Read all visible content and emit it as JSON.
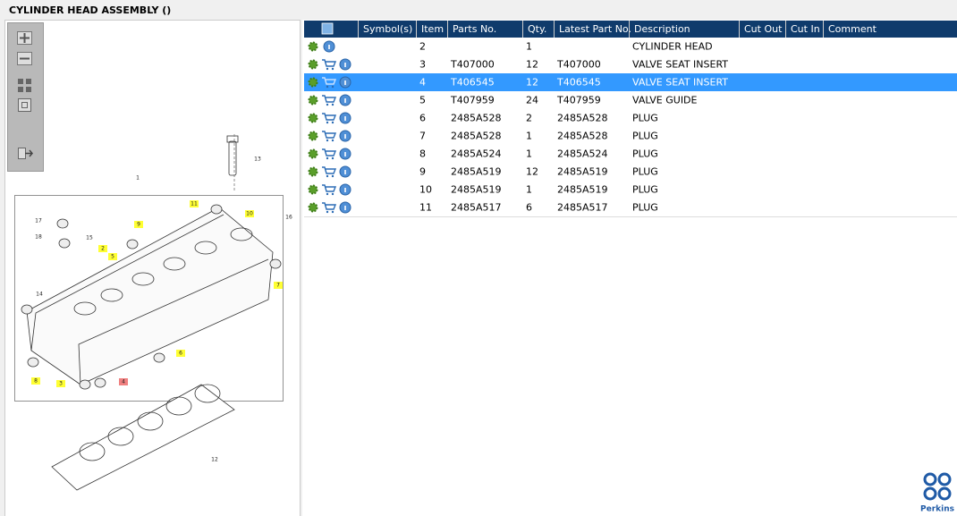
{
  "header": {
    "title": "CYLINDER HEAD ASSEMBLY ()"
  },
  "diagram": {
    "callouts": [
      "13",
      "1",
      "11",
      "10",
      "16",
      "17",
      "18",
      "15",
      "9",
      "2",
      "5",
      "7",
      "14",
      "6",
      "8",
      "3",
      "4",
      "12"
    ]
  },
  "table": {
    "columns": [
      "Symbol(s)",
      "Item",
      "Parts No.",
      "Qty.",
      "Latest Part No.",
      "Description",
      "Cut Out",
      "Cut In",
      "Comment"
    ],
    "rows": [
      {
        "item": "2",
        "qty": "1",
        "description": "CYLINDER HEAD"
      },
      {
        "item": "3",
        "parts_no": "T407000",
        "qty": "12",
        "latest_part_no": "T407000",
        "description": "VALVE SEAT INSERT"
      },
      {
        "item": "4",
        "parts_no": "T406545",
        "qty": "12",
        "latest_part_no": "T406545",
        "description": "VALVE SEAT INSERT",
        "selected": true
      },
      {
        "item": "5",
        "parts_no": "T407959",
        "qty": "24",
        "latest_part_no": "T407959",
        "description": "VALVE GUIDE"
      },
      {
        "item": "6",
        "parts_no": "2485A528",
        "qty": "2",
        "latest_part_no": "2485A528",
        "description": "PLUG"
      },
      {
        "item": "7",
        "parts_no": "2485A528",
        "qty": "1",
        "latest_part_no": "2485A528",
        "description": "PLUG"
      },
      {
        "item": "8",
        "parts_no": "2485A524",
        "qty": "1",
        "latest_part_no": "2485A524",
        "description": "PLUG"
      },
      {
        "item": "9",
        "parts_no": "2485A519",
        "qty": "12",
        "latest_part_no": "2485A519",
        "description": "PLUG"
      },
      {
        "item": "10",
        "parts_no": "2485A519",
        "qty": "1",
        "latest_part_no": "2485A519",
        "description": "PLUG"
      },
      {
        "item": "11",
        "parts_no": "2485A517",
        "qty": "6",
        "latest_part_no": "2485A517",
        "description": "PLUG"
      }
    ]
  },
  "logo": {
    "text": "Perkins"
  }
}
